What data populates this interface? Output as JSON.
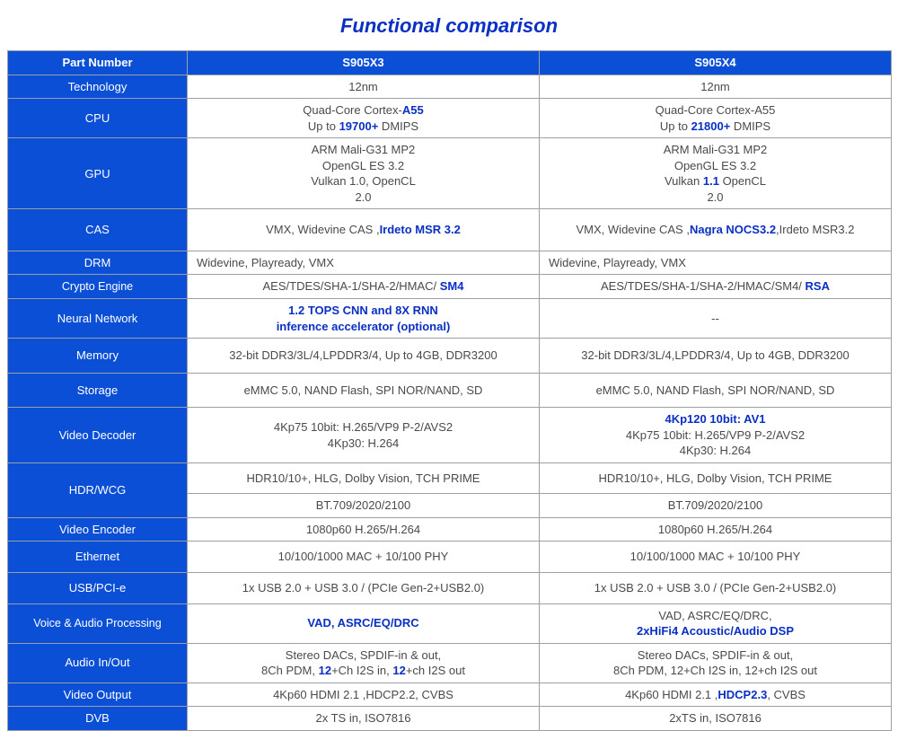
{
  "title": "Functional comparison",
  "colors": {
    "title": "#0a2fc4",
    "header_bg": "#0b4fd6",
    "header_fg": "#ffffff",
    "cell_fg": "#4a4a4a",
    "emphasis": "#0a2fc4",
    "border": "#9aa0a6"
  },
  "header": {
    "c0": "Part Number",
    "c1": "S905X3",
    "c2": "S905X4"
  },
  "rows": {
    "tech": {
      "label": "Technology",
      "a": "12nm",
      "b": "12nm"
    },
    "cpu": {
      "label": "CPU",
      "a1": "Quad-Core Cortex-",
      "a1_em": "A55",
      "a2_pre": "Up to ",
      "a2_em": "19700+",
      "a2_post": " DMIPS",
      "b1": "Quad-Core Cortex-A55",
      "b2_pre": "Up to ",
      "b2_em": "21800+",
      "b2_post": " DMIPS"
    },
    "gpu": {
      "label": "GPU",
      "a1": "ARM Mali-G31 MP2",
      "a2": "OpenGL ES 3.2",
      "a3": "Vulkan 1.0,  OpenCL",
      "a4": "2.0",
      "b1": "ARM Mali-G31 MP2",
      "b2": "OpenGL ES 3.2",
      "b3_pre": "Vulkan ",
      "b3_em": "1.1",
      "b3_post": "  OpenCL",
      "b4": "2.0"
    },
    "cas": {
      "label": "CAS",
      "a_pre": "VMX,  Widevine CAS  ,",
      "a_em": "Irdeto MSR 3.2",
      "b_pre": "VMX,  Widevine CAS  ,",
      "b_em": "Nagra NOCS3.2",
      "b_post": ",Irdeto MSR3.2"
    },
    "drm": {
      "label": "DRM",
      "a": "Widevine, Playready, VMX",
      "b": "Widevine, Playready, VMX"
    },
    "crypto": {
      "label": "Crypto Engine",
      "a_pre": "AES/TDES/SHA-1/SHA-2/HMAC/  ",
      "a_em": "SM4",
      "b_pre": "AES/TDES/SHA-1/SHA-2/HMAC/SM4/   ",
      "b_em": "RSA"
    },
    "nn": {
      "label": "Neural Network",
      "a1": "1.2 TOPS CNN and 8X RNN",
      "a2": "inference accelerator (optional)",
      "b": "--"
    },
    "mem": {
      "label": "Memory",
      "a": "32-bit DDR3/3L/4,LPDDR3/4, Up to 4GB, DDR3200",
      "b": "32-bit DDR3/3L/4,LPDDR3/4, Up to 4GB, DDR3200"
    },
    "stor": {
      "label": "Storage",
      "a": "eMMC 5.0, NAND Flash,  SPI NOR/NAND, SD",
      "b": "eMMC 5.0, NAND Flash,  SPI NOR/NAND, SD"
    },
    "vdec": {
      "label": "Video Decoder",
      "a1": "4Kp75 10bit: H.265/VP9 P-2/AVS2",
      "a2": "4Kp30: H.264",
      "b0": "4Kp120 10bit: AV1",
      "b1": "4Kp75 10bit: H.265/VP9 P-2/AVS2",
      "b2": "4Kp30: H.264"
    },
    "hdr1": {
      "label": "HDR/WCG",
      "a": "HDR10/10+, HLG, Dolby Vision, TCH PRIME",
      "b": "HDR10/10+, HLG, Dolby Vision, TCH PRIME"
    },
    "hdr2": {
      "a": "BT.709/2020/2100",
      "b": "BT.709/2020/2100"
    },
    "venc": {
      "label": "Video Encoder",
      "a": "1080p60 H.265/H.264",
      "b": "1080p60 H.265/H.264"
    },
    "eth": {
      "label": "Ethernet",
      "a": "10/100/1000 MAC + 10/100 PHY",
      "b": "10/100/1000 MAC + 10/100 PHY"
    },
    "usb": {
      "label": "USB/PCI-e",
      "a": "1x USB 2.0  + USB 3.0 / (PCIe Gen-2+USB2.0)",
      "b": "1x USB 2.0  + USB 3.0 / (PCIe Gen-2+USB2.0)"
    },
    "voice": {
      "label": "Voice & Audio Processing",
      "a": "VAD, ASRC/EQ/DRC",
      "b1": "VAD, ASRC/EQ/DRC,",
      "b2": "2xHiFi4 Acoustic/Audio DSP"
    },
    "aio": {
      "label": "Audio In/Out",
      "a1": "Stereo DACs, SPDIF-in & out,",
      "a2_pre": "8Ch PDM,  ",
      "a2_em1": "12",
      "a2_mid": "+Ch I2S in,  ",
      "a2_em2": "12",
      "a2_post": "+ch I2S out",
      "b1": "Stereo DACs, SPDIF-in & out,",
      "b2": "8Ch PDM, 12+Ch I2S in, 12+ch I2S out"
    },
    "vout": {
      "label": "Video Output",
      "a": "4Kp60 HDMI 2.1 ,HDCP2.2, CVBS",
      "b_pre": "4Kp60 HDMI 2.1 ,",
      "b_em": "HDCP2.3",
      "b_post": ", CVBS"
    },
    "dvb": {
      "label": "DVB",
      "a": "2x TS in, ISO7816",
      "b": "2xTS in, ISO7816"
    }
  }
}
